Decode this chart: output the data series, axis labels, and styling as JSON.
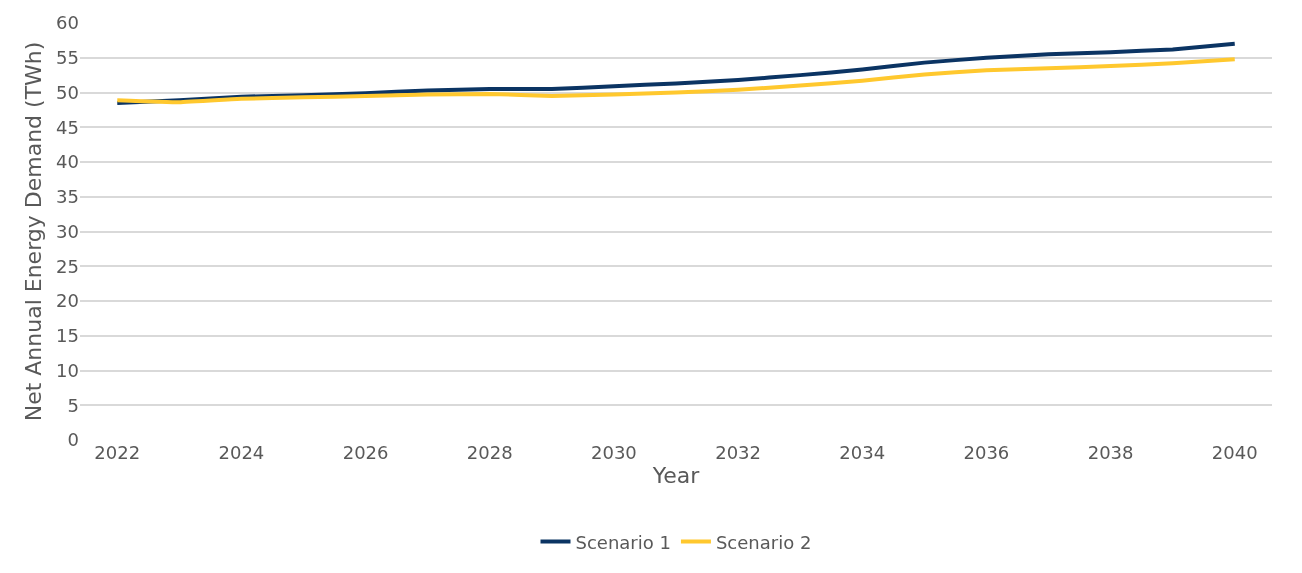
{
  "chart_data": {
    "type": "line",
    "xlabel": "Year",
    "ylabel": "Net Annual Energy Demand (TWh)",
    "x": [
      2022,
      2023,
      2024,
      2025,
      2026,
      2027,
      2028,
      2029,
      2030,
      2031,
      2032,
      2033,
      2034,
      2035,
      2036,
      2037,
      2038,
      2039,
      2040
    ],
    "series": [
      {
        "name": "Scenario 1",
        "color": "#0b3463",
        "values": [
          48.5,
          48.9,
          49.4,
          49.6,
          49.9,
          50.3,
          50.5,
          50.5,
          50.9,
          51.3,
          51.8,
          52.5,
          53.3,
          54.3,
          55.0,
          55.5,
          55.8,
          56.2,
          57.0
        ]
      },
      {
        "name": "Scenario 2",
        "color": "#ffc82e",
        "values": [
          48.9,
          48.6,
          49.1,
          49.3,
          49.5,
          49.7,
          49.8,
          49.5,
          49.7,
          50.0,
          50.4,
          51.0,
          51.7,
          52.6,
          53.2,
          53.5,
          53.8,
          54.2,
          54.8
        ]
      }
    ],
    "xlim": [
      2021.4,
      2040.6
    ],
    "xticks": [
      2022,
      2024,
      2026,
      2028,
      2030,
      2032,
      2034,
      2036,
      2038,
      2040
    ],
    "ylim": [
      0,
      60
    ],
    "yticks": [
      0,
      5,
      10,
      15,
      20,
      25,
      30,
      35,
      40,
      45,
      50,
      55,
      60
    ],
    "grid": "y",
    "legend": "bottom",
    "marker": "none",
    "line_style": "solid"
  }
}
